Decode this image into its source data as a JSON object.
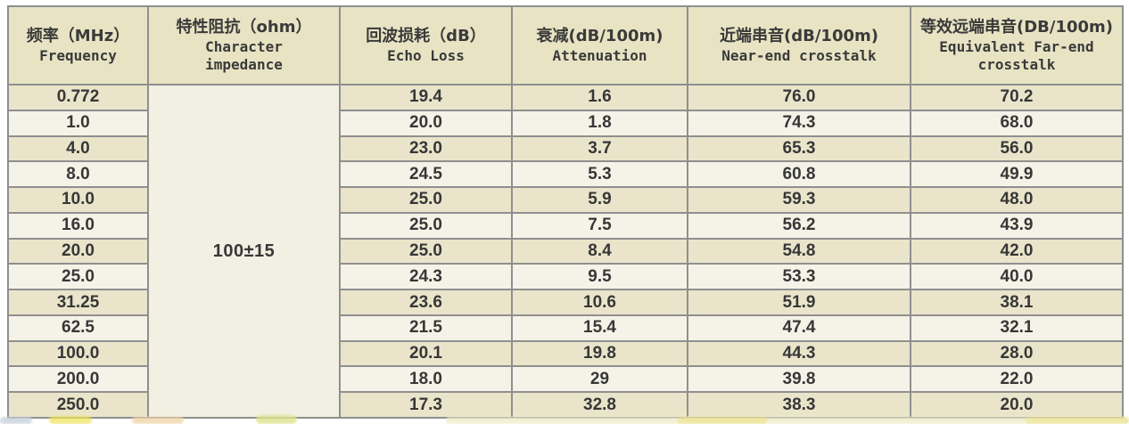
{
  "table": {
    "columns": [
      {
        "zh": "频率（MHz）",
        "en": "Frequency"
      },
      {
        "zh": "特性阻抗（ohm）",
        "en": "Character impedance"
      },
      {
        "zh": "回波损耗（dB）",
        "en": "Echo Loss"
      },
      {
        "zh": "衰减(dB/100m)",
        "en": "Attenuation"
      },
      {
        "zh": "近端串音(dB/100m)",
        "en": "Near-end crosstalk"
      },
      {
        "zh": "等效远端串音(DB/100m)",
        "en": "Equivalent Far-end crosstalk"
      }
    ],
    "impedance_value": "100±15",
    "rows": [
      {
        "frequency": "0.772",
        "echo_loss": "19.4",
        "attenuation": "1.6",
        "near_end_crosstalk": "76.0",
        "equivalent_far_end_crosstalk": "70.2"
      },
      {
        "frequency": "1.0",
        "echo_loss": "20.0",
        "attenuation": "1.8",
        "near_end_crosstalk": "74.3",
        "equivalent_far_end_crosstalk": "68.0"
      },
      {
        "frequency": "4.0",
        "echo_loss": "23.0",
        "attenuation": "3.7",
        "near_end_crosstalk": "65.3",
        "equivalent_far_end_crosstalk": "56.0"
      },
      {
        "frequency": "8.0",
        "echo_loss": "24.5",
        "attenuation": "5.3",
        "near_end_crosstalk": "60.8",
        "equivalent_far_end_crosstalk": "49.9"
      },
      {
        "frequency": "10.0",
        "echo_loss": "25.0",
        "attenuation": "5.9",
        "near_end_crosstalk": "59.3",
        "equivalent_far_end_crosstalk": "48.0"
      },
      {
        "frequency": "16.0",
        "echo_loss": "25.0",
        "attenuation": "7.5",
        "near_end_crosstalk": "56.2",
        "equivalent_far_end_crosstalk": "43.9"
      },
      {
        "frequency": "20.0",
        "echo_loss": "25.0",
        "attenuation": "8.4",
        "near_end_crosstalk": "54.8",
        "equivalent_far_end_crosstalk": "42.0"
      },
      {
        "frequency": "25.0",
        "echo_loss": "24.3",
        "attenuation": "9.5",
        "near_end_crosstalk": "53.3",
        "equivalent_far_end_crosstalk": "40.0"
      },
      {
        "frequency": "31.25",
        "echo_loss": "23.6",
        "attenuation": "10.6",
        "near_end_crosstalk": "51.9",
        "equivalent_far_end_crosstalk": "38.1"
      },
      {
        "frequency": "62.5",
        "echo_loss": "21.5",
        "attenuation": "15.4",
        "near_end_crosstalk": "47.4",
        "equivalent_far_end_crosstalk": "32.1"
      },
      {
        "frequency": "100.0",
        "echo_loss": "20.1",
        "attenuation": "19.8",
        "near_end_crosstalk": "44.3",
        "equivalent_far_end_crosstalk": "28.0"
      },
      {
        "frequency": "200.0",
        "echo_loss": "18.0",
        "attenuation": "29",
        "near_end_crosstalk": "39.8",
        "equivalent_far_end_crosstalk": "22.0"
      },
      {
        "frequency": "250.0",
        "echo_loss": "17.3",
        "attenuation": "32.8",
        "near_end_crosstalk": "38.3",
        "equivalent_far_end_crosstalk": "20.0"
      }
    ]
  },
  "colors": {
    "header_bg": "#e8e3c3",
    "row_odd_bg": "#eae5ca",
    "row_even_bg": "#f5f3e7",
    "impedance_bg": "#f2f0e2",
    "border": "#8f8f8f",
    "text": "#373737"
  }
}
